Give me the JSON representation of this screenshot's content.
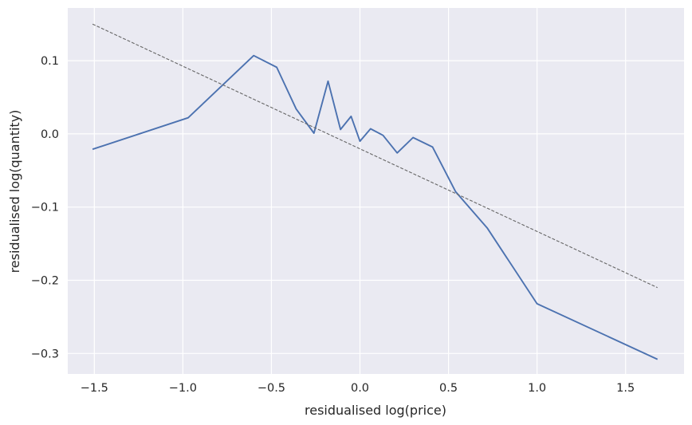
{
  "chart_data": {
    "type": "line",
    "title": "",
    "xlabel": "residualised log(price)",
    "ylabel": "residualised log(quantity)",
    "xlim": [
      -1.65,
      1.83
    ],
    "ylim": [
      -0.328,
      0.172
    ],
    "xticks": [
      -1.5,
      -1.0,
      -0.5,
      0.0,
      0.5,
      1.0,
      1.5
    ],
    "xtick_labels": [
      "−1.5",
      "−1.0",
      "−0.5",
      "0.0",
      "0.5",
      "1.0",
      "1.5"
    ],
    "yticks": [
      0.1,
      0.0,
      -0.1,
      -0.2,
      -0.3
    ],
    "ytick_labels": [
      "0.1",
      "0.0",
      "−0.1",
      "−0.2",
      "−0.3"
    ],
    "grid": true,
    "background": "#eaeaf2",
    "series": [
      {
        "style": "solid",
        "color": "#4c72b0",
        "x": [
          -1.51,
          -0.97,
          -0.6,
          -0.47,
          -0.36,
          -0.26,
          -0.18,
          -0.11,
          -0.05,
          0.0,
          0.06,
          0.13,
          0.21,
          0.3,
          0.41,
          0.54,
          0.72,
          1.0,
          1.68
        ],
        "y": [
          -0.021,
          0.022,
          0.107,
          0.091,
          0.034,
          0.001,
          0.072,
          0.006,
          0.024,
          -0.01,
          0.007,
          -0.002,
          -0.026,
          -0.005,
          -0.018,
          -0.079,
          -0.129,
          -0.232,
          -0.308
        ]
      },
      {
        "style": "dashed",
        "color": "#666666",
        "x": [
          -1.51,
          1.68
        ],
        "y": [
          0.15,
          -0.21
        ]
      }
    ]
  }
}
